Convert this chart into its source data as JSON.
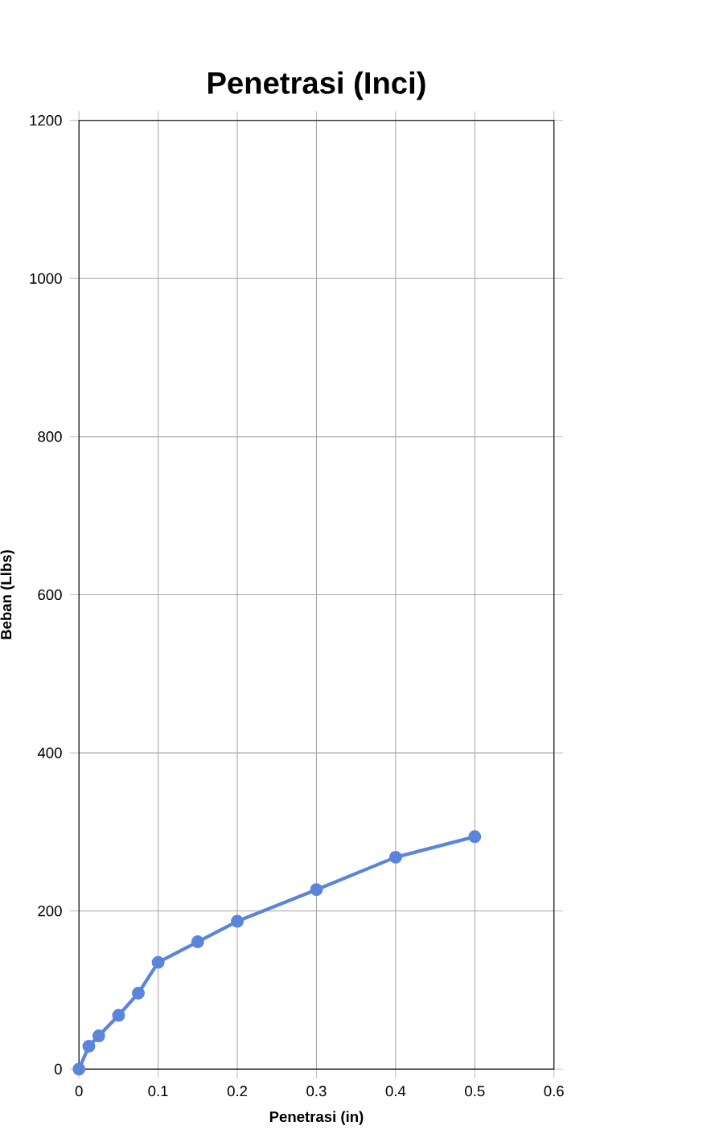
{
  "chart_data": {
    "type": "line",
    "title": "Penetrasi (Inci)",
    "xlabel": "Penetrasi (in)",
    "ylabel": "Beban (Llbs)",
    "x": [
      0,
      0.0125,
      0.025,
      0.05,
      0.075,
      0.1,
      0.15,
      0.2,
      0.3,
      0.4,
      0.5
    ],
    "series": [
      {
        "color": "#5b84dc",
        "values": [
          0,
          29,
          42,
          68,
          96,
          135,
          161,
          187,
          227,
          268,
          294
        ]
      }
    ],
    "xlim": [
      0,
      0.6
    ],
    "xticks": [
      0,
      0.1,
      0.2,
      0.3,
      0.4,
      0.5,
      0.6
    ],
    "ylim": [
      0,
      1200
    ],
    "yticks": [
      0,
      200,
      400,
      600,
      800,
      1000,
      1200
    ],
    "grid": true,
    "marker": "circle",
    "line_style": "solid"
  }
}
